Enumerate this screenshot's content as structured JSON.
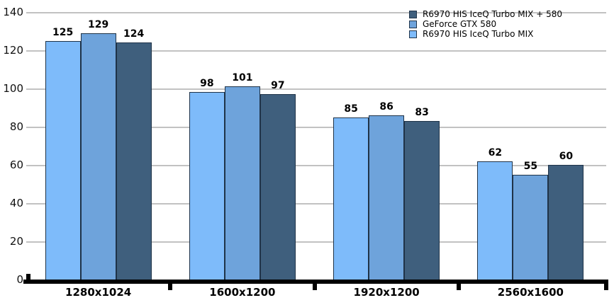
{
  "chart_data": {
    "type": "bar",
    "title": "",
    "xlabel": "",
    "ylabel": "",
    "categories": [
      "1280x1024",
      "1600x1200",
      "1920x1200",
      "2560x1600"
    ],
    "series": [
      {
        "name": "R6970 HIS IceQ Turbo MIX + 580",
        "color": "#3F5F7D",
        "values": [
          124,
          97,
          83,
          60
        ]
      },
      {
        "name": "GeForce GTX 580",
        "color": "#6EA3DB",
        "values": [
          129,
          101,
          86,
          55
        ]
      },
      {
        "name": "R6970 HIS IceQ Turbo MIX",
        "color": "#7EBBFA",
        "values": [
          125,
          98,
          85,
          62
        ]
      }
    ],
    "yticks": [
      0,
      20,
      40,
      60,
      80,
      100,
      120,
      140
    ],
    "ylim": [
      0,
      140
    ],
    "grid": true,
    "value_labels": true,
    "legend_position": "top-right",
    "bar_order_in_group": "reverse_of_legend",
    "colors": {
      "bar_border": "#1F3348",
      "axis": "#000000",
      "gridline": "#C2C2C2",
      "value_label_text": "#000000"
    }
  }
}
